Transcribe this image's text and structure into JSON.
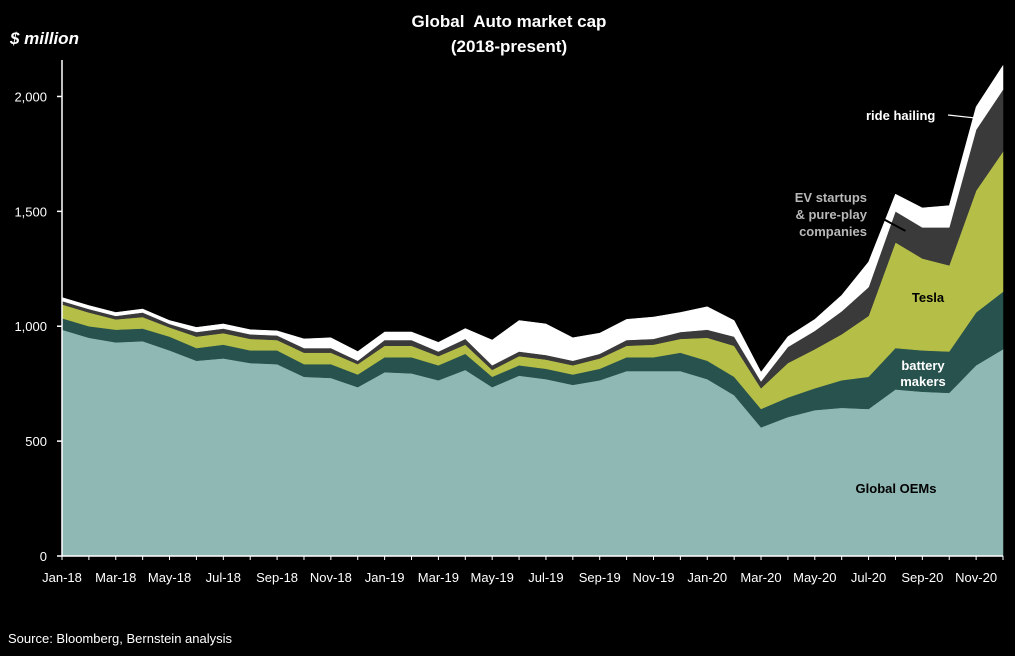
{
  "chart_data": {
    "type": "area",
    "stacked": true,
    "title": "Global  Auto market cap",
    "subtitle": "(2018-present)",
    "ylabel": "$ million",
    "xlabel": "",
    "ylim": [
      0,
      2150
    ],
    "yticks": [
      0,
      500,
      1000,
      1500,
      2000
    ],
    "ytick_labels": [
      "0",
      "500",
      "1,000",
      "1,500",
      "2,000"
    ],
    "xtick_labels": [
      "Jan-18",
      "Mar-18",
      "May-18",
      "Jul-18",
      "Sep-18",
      "Nov-18",
      "Jan-19",
      "Mar-19",
      "May-19",
      "Jul-19",
      "Sep-19",
      "Nov-19",
      "Jan-20",
      "Mar-20",
      "May-20",
      "Jul-20",
      "Sep-20",
      "Nov-20"
    ],
    "grid": false,
    "legend": "none",
    "x": [
      "Jan-18",
      "Feb-18",
      "Mar-18",
      "Apr-18",
      "May-18",
      "Jun-18",
      "Jul-18",
      "Aug-18",
      "Sep-18",
      "Oct-18",
      "Nov-18",
      "Dec-18",
      "Jan-19",
      "Feb-19",
      "Mar-19",
      "Apr-19",
      "May-19",
      "Jun-19",
      "Jul-19",
      "Aug-19",
      "Sep-19",
      "Oct-19",
      "Nov-19",
      "Dec-19",
      "Jan-20",
      "Feb-20",
      "Mar-20",
      "Apr-20",
      "May-20",
      "Jun-20",
      "Jul-20",
      "Aug-20",
      "Sep-20",
      "Oct-20",
      "Nov-20",
      "Dec-20"
    ],
    "series": [
      {
        "name": "Global OEMs",
        "color": "#8fb7b3",
        "values": [
          985,
          950,
          930,
          935,
          895,
          850,
          860,
          840,
          835,
          780,
          775,
          735,
          800,
          795,
          765,
          810,
          735,
          785,
          770,
          745,
          765,
          805,
          805,
          805,
          770,
          700,
          560,
          605,
          635,
          645,
          640,
          725,
          715,
          710,
          830,
          900
        ]
      },
      {
        "name": "battery makers",
        "color": "#27524e",
        "values": [
          50,
          50,
          55,
          55,
          60,
          55,
          60,
          55,
          60,
          55,
          60,
          55,
          65,
          70,
          65,
          70,
          45,
          45,
          45,
          45,
          50,
          60,
          60,
          80,
          80,
          80,
          80,
          85,
          95,
          120,
          140,
          180,
          180,
          180,
          230,
          250
        ]
      },
      {
        "name": "Tesla",
        "color": "#b5bf47",
        "values": [
          60,
          60,
          45,
          50,
          40,
          50,
          50,
          50,
          45,
          50,
          50,
          45,
          50,
          50,
          40,
          40,
          30,
          40,
          40,
          40,
          45,
          50,
          55,
          60,
          100,
          135,
          90,
          150,
          170,
          200,
          265,
          460,
          400,
          375,
          530,
          610
        ]
      },
      {
        "name": "EV startups & pure-play companies",
        "color": "#3a3a3a",
        "values": [
          15,
          15,
          15,
          20,
          15,
          20,
          20,
          20,
          20,
          20,
          20,
          15,
          25,
          25,
          20,
          25,
          20,
          20,
          20,
          20,
          20,
          25,
          25,
          30,
          35,
          40,
          30,
          70,
          80,
          100,
          125,
          135,
          135,
          165,
          265,
          270
        ]
      },
      {
        "name": "ride hailing",
        "color": "#ffffff",
        "values": [
          15,
          15,
          15,
          15,
          15,
          20,
          20,
          20,
          20,
          40,
          45,
          40,
          35,
          35,
          40,
          45,
          110,
          135,
          135,
          100,
          90,
          90,
          95,
          85,
          100,
          70,
          40,
          45,
          50,
          70,
          110,
          75,
          85,
          95,
          100,
          105
        ]
      }
    ],
    "annotations": [
      {
        "text": "ride hailing",
        "series": "ride hailing"
      },
      {
        "text": "EV startups",
        "series": "EV startups & pure-play companies"
      },
      {
        "text": "& pure-play",
        "series": "EV startups & pure-play companies"
      },
      {
        "text": "companies",
        "series": "EV startups & pure-play companies"
      },
      {
        "text": "Tesla",
        "series": "Tesla"
      },
      {
        "text": "battery",
        "series": "battery makers"
      },
      {
        "text": "makers",
        "series": "battery makers"
      },
      {
        "text": "Global OEMs",
        "series": "Global OEMs"
      }
    ]
  },
  "footer": {
    "source": "Source: Bloomberg, Bernstein analysis"
  }
}
